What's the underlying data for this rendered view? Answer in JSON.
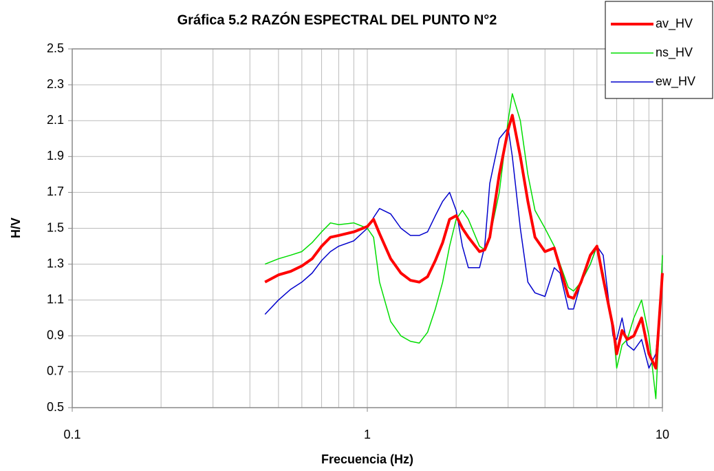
{
  "chart_data": {
    "type": "line",
    "title": "Gráfica 5.2 RAZÓN ESPECTRAL DEL PUNTO N°2",
    "x_label": "Frecuencia (Hz)",
    "y_label": "H/V",
    "x_log": true,
    "grid": true,
    "legend": "top-right",
    "xlim": [
      0.1,
      10
    ],
    "xticks": [
      0.1,
      1,
      10
    ],
    "xminor_ticks": [
      0.2,
      0.3,
      0.4,
      0.5,
      0.6,
      0.7,
      0.8,
      0.9,
      2,
      3,
      4,
      5,
      6,
      7,
      8,
      9
    ],
    "ylim": [
      0.5,
      2.5
    ],
    "yticks": [
      0.5,
      0.7,
      0.9,
      1.1,
      1.3,
      1.5,
      1.7,
      1.9,
      2.1,
      2.3,
      2.5
    ],
    "x": [
      0.45,
      0.5,
      0.55,
      0.6,
      0.65,
      0.7,
      0.75,
      0.8,
      0.9,
      1.0,
      1.05,
      1.1,
      1.2,
      1.3,
      1.4,
      1.5,
      1.6,
      1.7,
      1.8,
      1.9,
      2.0,
      2.1,
      2.2,
      2.4,
      2.5,
      2.6,
      2.8,
      3.0,
      3.1,
      3.3,
      3.5,
      3.7,
      4.0,
      4.3,
      4.5,
      4.8,
      5.0,
      5.3,
      5.7,
      6.0,
      6.3,
      6.8,
      7.0,
      7.3,
      7.6,
      8.0,
      8.5,
      9.0,
      9.5,
      10
    ],
    "series": [
      {
        "name": "av_HV",
        "color": "#ff0000",
        "width": 4,
        "values": [
          1.2,
          1.24,
          1.26,
          1.29,
          1.33,
          1.4,
          1.45,
          1.46,
          1.48,
          1.51,
          1.55,
          1.47,
          1.33,
          1.25,
          1.21,
          1.2,
          1.23,
          1.32,
          1.42,
          1.55,
          1.57,
          1.5,
          1.45,
          1.37,
          1.38,
          1.45,
          1.8,
          2.05,
          2.13,
          1.9,
          1.65,
          1.45,
          1.37,
          1.39,
          1.28,
          1.12,
          1.11,
          1.2,
          1.35,
          1.4,
          1.22,
          0.95,
          0.8,
          0.93,
          0.88,
          0.9,
          1.0,
          0.8,
          0.72,
          1.25
        ]
      },
      {
        "name": "ns_HV",
        "color": "#00dd00",
        "width": 1.5,
        "values": [
          1.3,
          1.33,
          1.35,
          1.37,
          1.42,
          1.48,
          1.53,
          1.52,
          1.53,
          1.5,
          1.45,
          1.2,
          0.98,
          0.9,
          0.87,
          0.86,
          0.92,
          1.05,
          1.2,
          1.4,
          1.55,
          1.6,
          1.55,
          1.4,
          1.38,
          1.45,
          1.7,
          2.1,
          2.25,
          2.1,
          1.8,
          1.6,
          1.5,
          1.4,
          1.3,
          1.17,
          1.15,
          1.2,
          1.3,
          1.4,
          1.25,
          0.95,
          0.72,
          0.85,
          0.88,
          1.0,
          1.1,
          0.9,
          0.55,
          1.35
        ]
      },
      {
        "name": "ew_HV",
        "color": "#0000cc",
        "width": 1.5,
        "values": [
          1.02,
          1.1,
          1.16,
          1.2,
          1.25,
          1.32,
          1.37,
          1.4,
          1.43,
          1.5,
          1.56,
          1.61,
          1.58,
          1.5,
          1.46,
          1.46,
          1.48,
          1.57,
          1.65,
          1.7,
          1.6,
          1.4,
          1.28,
          1.28,
          1.4,
          1.75,
          2.0,
          2.06,
          1.9,
          1.5,
          1.2,
          1.14,
          1.12,
          1.28,
          1.25,
          1.05,
          1.05,
          1.2,
          1.3,
          1.4,
          1.35,
          0.9,
          0.88,
          1.0,
          0.85,
          0.82,
          0.88,
          0.72,
          0.8,
          1.2
        ]
      }
    ]
  }
}
